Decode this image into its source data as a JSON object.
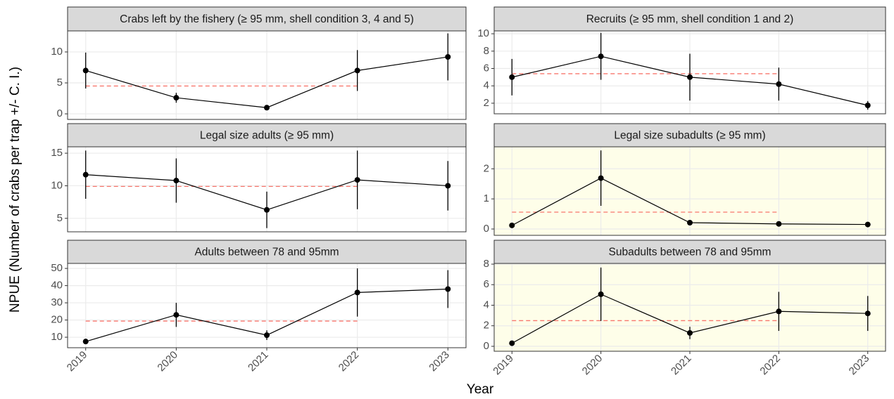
{
  "xlabel": "Year",
  "ylabel": "NPUE (Number of crabs per trap +/- C. I.)",
  "chart_data": [
    {
      "type": "line",
      "title": "Crabs left by the fishery (≥ 95 mm, shell condition 3, 4 and 5)",
      "x": [
        2019,
        2020,
        2021,
        2022,
        2023
      ],
      "xlim": [
        2018.8,
        2023.2
      ],
      "values": [
        7.0,
        2.6,
        1.0,
        7.0,
        9.2
      ],
      "error": [
        2.9,
        0.8,
        0.3,
        3.3,
        3.8
      ],
      "color": "#000000",
      "mean_line": {
        "value": 4.5,
        "from": 2019,
        "to": 2022,
        "color": "#f8766d"
      },
      "ylim": [
        -0.9,
        13.4
      ],
      "yticks": [
        0,
        5,
        10
      ],
      "background": "#ffffff"
    },
    {
      "type": "line",
      "title": "Recruits (≥ 95 mm, shell condition 1 and 2)",
      "x": [
        2019,
        2020,
        2021,
        2022,
        2023
      ],
      "xlim": [
        2018.8,
        2023.2
      ],
      "values": [
        5.0,
        7.4,
        5.0,
        4.2,
        1.75
      ],
      "error": [
        2.1,
        2.7,
        2.7,
        1.9,
        0.5
      ],
      "color": "#000000",
      "mean_line": {
        "value": 5.4,
        "from": 2019,
        "to": 2022,
        "color": "#f8766d"
      },
      "ylim": [
        0.78,
        10.33
      ],
      "yticks": [
        2,
        4,
        6,
        8,
        10
      ],
      "background": "#ffffff"
    },
    {
      "type": "line",
      "title": "Legal size adults (≥ 95 mm)",
      "x": [
        2019,
        2020,
        2021,
        2022,
        2023
      ],
      "xlim": [
        2018.8,
        2023.2
      ],
      "values": [
        11.7,
        10.8,
        6.3,
        10.9,
        10.0
      ],
      "error": [
        3.7,
        3.4,
        2.8,
        4.5,
        3.8
      ],
      "color": "#000000",
      "mean_line": {
        "value": 9.9,
        "from": 2019,
        "to": 2022,
        "color": "#f8766d"
      },
      "ylim": [
        2.93,
        15.98
      ],
      "yticks": [
        5,
        10,
        15
      ],
      "background": "#ffffff"
    },
    {
      "type": "line",
      "title": "Legal size subadults (≥ 95 mm)",
      "x": [
        2019,
        2020,
        2021,
        2022,
        2023
      ],
      "xlim": [
        2018.8,
        2023.2
      ],
      "values": [
        0.12,
        1.69,
        0.21,
        0.17,
        0.15
      ],
      "error": [
        0.03,
        0.92,
        0.06,
        0.04,
        0.04
      ],
      "color": "#000000",
      "mean_line": {
        "value": 0.56,
        "from": 2019,
        "to": 2022,
        "color": "#f8766d"
      },
      "ylim": [
        -0.21,
        2.73
      ],
      "yticks": [
        0,
        1,
        2
      ],
      "background": "#fefee9"
    },
    {
      "type": "line",
      "title": "Adults between 78 and 95mm",
      "x": [
        2019,
        2020,
        2021,
        2022,
        2023
      ],
      "xlim": [
        2018.8,
        2023.2
      ],
      "xticks": [
        2019,
        2020,
        2021,
        2022,
        2023
      ],
      "values": [
        7.5,
        23,
        11.2,
        36,
        38
      ],
      "error": [
        1.5,
        7,
        2.8,
        14,
        11
      ],
      "color": "#000000",
      "mean_line": {
        "value": 19.4,
        "from": 2019,
        "to": 2022,
        "color": "#f8766d"
      },
      "ylim": [
        3.9,
        52.9
      ],
      "yticks": [
        10,
        20,
        30,
        40,
        50
      ],
      "background": "#ffffff"
    },
    {
      "type": "line",
      "title": "Subadults between 78 and 95mm",
      "x": [
        2019,
        2020,
        2021,
        2022,
        2023
      ],
      "xlim": [
        2018.8,
        2023.2
      ],
      "xticks": [
        2019,
        2020,
        2021,
        2022,
        2023
      ],
      "values": [
        0.3,
        5.07,
        1.3,
        3.4,
        3.2
      ],
      "error": [
        0.1,
        2.6,
        0.6,
        1.9,
        1.7
      ],
      "color": "#000000",
      "mean_line": {
        "value": 2.5,
        "from": 2019,
        "to": 2022,
        "color": "#f8766d"
      },
      "ylim": [
        -0.48,
        8.07
      ],
      "yticks": [
        0,
        2,
        4,
        6,
        8
      ],
      "background": "#fefee9"
    }
  ]
}
